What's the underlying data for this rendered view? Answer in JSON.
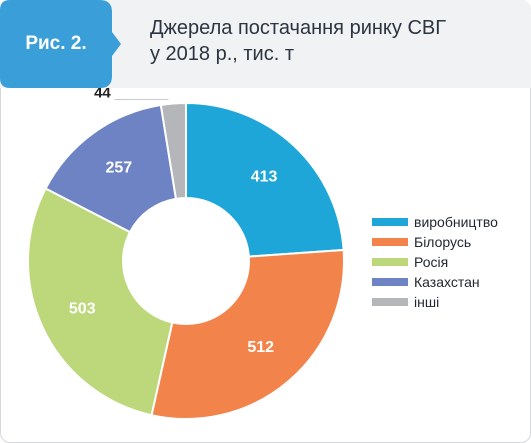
{
  "figure": {
    "label": "Рис. 2.",
    "title_line1": "Джерела постачання ринку СВГ",
    "title_line2": "у 2018 р., тис. т"
  },
  "colors": {
    "badge": "#3a9fd9",
    "header_bg": "#f1f2f4"
  },
  "chart_data": {
    "type": "pie",
    "donut": true,
    "categories": [
      "виробництво",
      "Білорусь",
      "Росія",
      "Казахстан",
      "інші"
    ],
    "values": [
      413,
      512,
      503,
      257,
      44
    ],
    "colors": [
      "#1ea6d9",
      "#f2834a",
      "#bcd87a",
      "#6d83c4",
      "#b4b6b9"
    ],
    "start_angle_deg": 0,
    "direction": "clockwise",
    "legend_position": "right"
  }
}
